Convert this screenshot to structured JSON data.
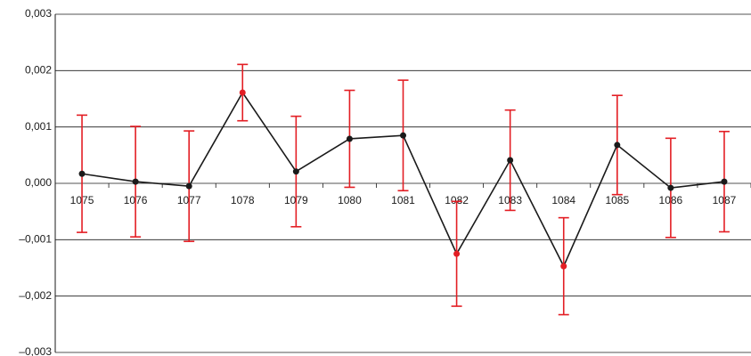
{
  "chart_data": {
    "type": "line",
    "categories": [
      "1075",
      "1076",
      "1077",
      "1078",
      "1079",
      "1080",
      "1081",
      "1082",
      "1083",
      "1084",
      "1085",
      "1086",
      "1087"
    ],
    "series": [
      {
        "color": "#1a1a1a",
        "error_color": "#e31e24",
        "point_colors": [
          "#1a1a1a",
          "#1a1a1a",
          "#1a1a1a",
          "#e31e24",
          "#1a1a1a",
          "#1a1a1a",
          "#1a1a1a",
          "#e31e24",
          "#1a1a1a",
          "#e31e24",
          "#1a1a1a",
          "#1a1a1a",
          "#1a1a1a"
        ],
        "values": [
          0.00017,
          3e-05,
          -5e-05,
          0.00161,
          0.00021,
          0.00079,
          0.00085,
          -0.00125,
          0.00041,
          -0.00147,
          0.00068,
          -8e-05,
          3e-05
        ],
        "errors": [
          0.00104,
          0.00098,
          0.00098,
          0.0005,
          0.00098,
          0.00086,
          0.00098,
          0.00093,
          0.00089,
          0.00086,
          0.00088,
          0.00088,
          0.00089
        ]
      }
    ],
    "ylim": [
      -0.003,
      0.003
    ],
    "yticks": [
      {
        "value": -0.003,
        "label": "–0,003"
      },
      {
        "value": -0.002,
        "label": "–0,002"
      },
      {
        "value": -0.001,
        "label": "–0,001"
      },
      {
        "value": 0,
        "label": "0,000"
      },
      {
        "value": 0.001,
        "label": "0,001"
      },
      {
        "value": 0.002,
        "label": "0,002"
      },
      {
        "value": 0.003,
        "label": "0,003"
      }
    ],
    "grid": true
  }
}
